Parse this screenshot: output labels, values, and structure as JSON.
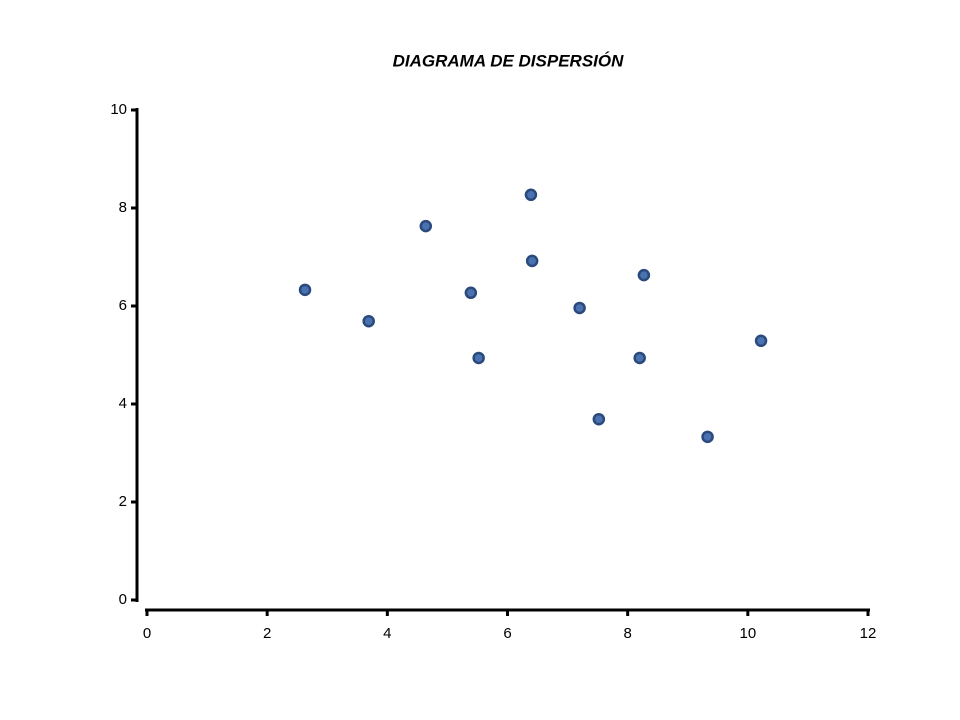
{
  "chart_data": {
    "type": "scatter",
    "title": "DIAGRAMA DE DISPERSIÓN",
    "x": [
      2.63,
      3.69,
      4.64,
      5.39,
      5.52,
      6.39,
      6.41,
      7.2,
      7.52,
      8.27,
      8.2,
      9.33,
      10.22
    ],
    "values": [
      6.33,
      5.69,
      7.63,
      6.27,
      4.94,
      8.27,
      6.92,
      5.96,
      3.69,
      6.63,
      4.94,
      3.33,
      5.29
    ],
    "color": "#4a72b0",
    "xlim": [
      0,
      12
    ],
    "xticks": [
      0,
      2,
      4,
      6,
      8,
      10,
      12
    ],
    "ylim": [
      0,
      10
    ],
    "yticks": [
      0,
      2,
      4,
      6,
      8,
      10
    ]
  }
}
